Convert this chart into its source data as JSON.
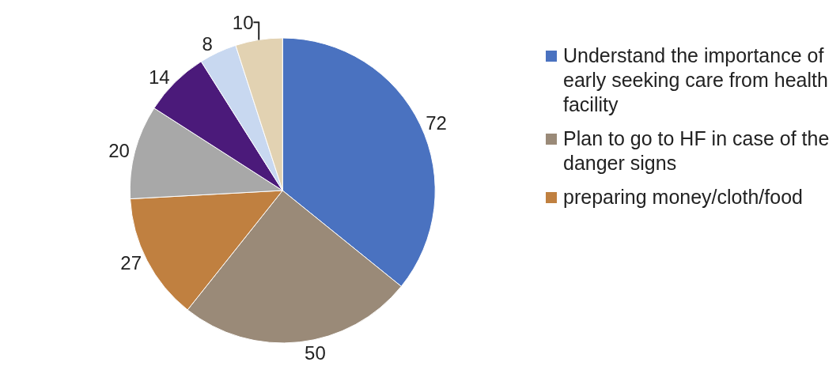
{
  "chart_data": {
    "type": "pie",
    "categories": [
      "Understand the importance of early seeking care from health facility",
      "Plan to go to HF in case of the danger signs",
      "preparing money/cloth/food",
      null,
      null,
      null,
      null
    ],
    "values": [
      72,
      50,
      27,
      20,
      14,
      8,
      10
    ],
    "colors": [
      "#4a72c0",
      "#9a8a78",
      "#c08040",
      "#a8a8a8",
      "#4b1a7a",
      "#c8d8f0",
      "#e2d2b2"
    ],
    "data_labels": true,
    "legend": "right"
  }
}
